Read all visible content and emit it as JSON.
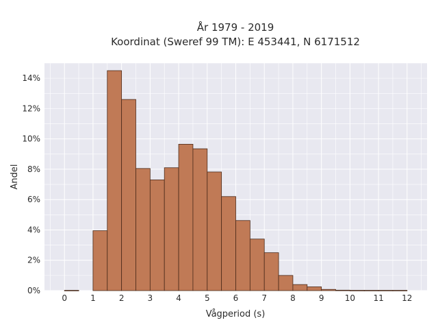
{
  "chart_data": {
    "type": "bar",
    "title": [
      "År 1979 - 2019",
      "Koordinat (Sweref 99 TM): E 453441, N 6171512"
    ],
    "xlabel": "Vågperiod (s)",
    "ylabel": "Andel",
    "xlim": [
      -0.7,
      12.7
    ],
    "ylim": [
      0,
      0.15
    ],
    "bin_width": 0.5,
    "bins": [
      {
        "x0": 0.0,
        "x1": 0.5,
        "value": 0.0002
      },
      {
        "x0": 1.0,
        "x1": 1.5,
        "value": 0.0395
      },
      {
        "x0": 1.5,
        "x1": 2.0,
        "value": 0.145
      },
      {
        "x0": 2.0,
        "x1": 2.5,
        "value": 0.126
      },
      {
        "x0": 2.5,
        "x1": 3.0,
        "value": 0.0805
      },
      {
        "x0": 3.0,
        "x1": 3.5,
        "value": 0.073
      },
      {
        "x0": 3.5,
        "x1": 4.0,
        "value": 0.081
      },
      {
        "x0": 4.0,
        "x1": 4.5,
        "value": 0.0965
      },
      {
        "x0": 4.5,
        "x1": 5.0,
        "value": 0.0935
      },
      {
        "x0": 5.0,
        "x1": 5.5,
        "value": 0.0782
      },
      {
        "x0": 5.5,
        "x1": 6.0,
        "value": 0.062
      },
      {
        "x0": 6.0,
        "x1": 6.5,
        "value": 0.0462
      },
      {
        "x0": 6.5,
        "x1": 7.0,
        "value": 0.034
      },
      {
        "x0": 7.0,
        "x1": 7.5,
        "value": 0.025
      },
      {
        "x0": 7.5,
        "x1": 8.0,
        "value": 0.01
      },
      {
        "x0": 8.0,
        "x1": 8.5,
        "value": 0.004
      },
      {
        "x0": 8.5,
        "x1": 9.0,
        "value": 0.0025
      },
      {
        "x0": 9.0,
        "x1": 9.5,
        "value": 0.0008
      },
      {
        "x0": 9.5,
        "x1": 10.0,
        "value": 0.0003
      },
      {
        "x0": 10.0,
        "x1": 10.5,
        "value": 0.0002
      },
      {
        "x0": 10.5,
        "x1": 11.0,
        "value": 0.0002
      },
      {
        "x0": 11.0,
        "x1": 11.5,
        "value": 0.0002
      },
      {
        "x0": 11.5,
        "x1": 12.0,
        "value": 0.0002
      }
    ],
    "xticks": [
      0,
      1,
      2,
      3,
      4,
      5,
      6,
      7,
      8,
      9,
      10,
      11,
      12
    ],
    "xtick_labels": [
      "0",
      "1",
      "2",
      "3",
      "4",
      "5",
      "6",
      "7",
      "8",
      "9",
      "10",
      "11",
      "12"
    ],
    "yticks": [
      0,
      0.02,
      0.04,
      0.06,
      0.08,
      0.1,
      0.12,
      0.14
    ],
    "ytick_labels": [
      "0%",
      "2%",
      "4%",
      "6%",
      "8%",
      "10%",
      "12%",
      "14%"
    ],
    "grid": true,
    "colors": {
      "bar_fill": "#c07a56",
      "bar_edge": "#4a2a1a",
      "plot_bg": "#e8e8f0",
      "grid": "#ffffff"
    }
  }
}
